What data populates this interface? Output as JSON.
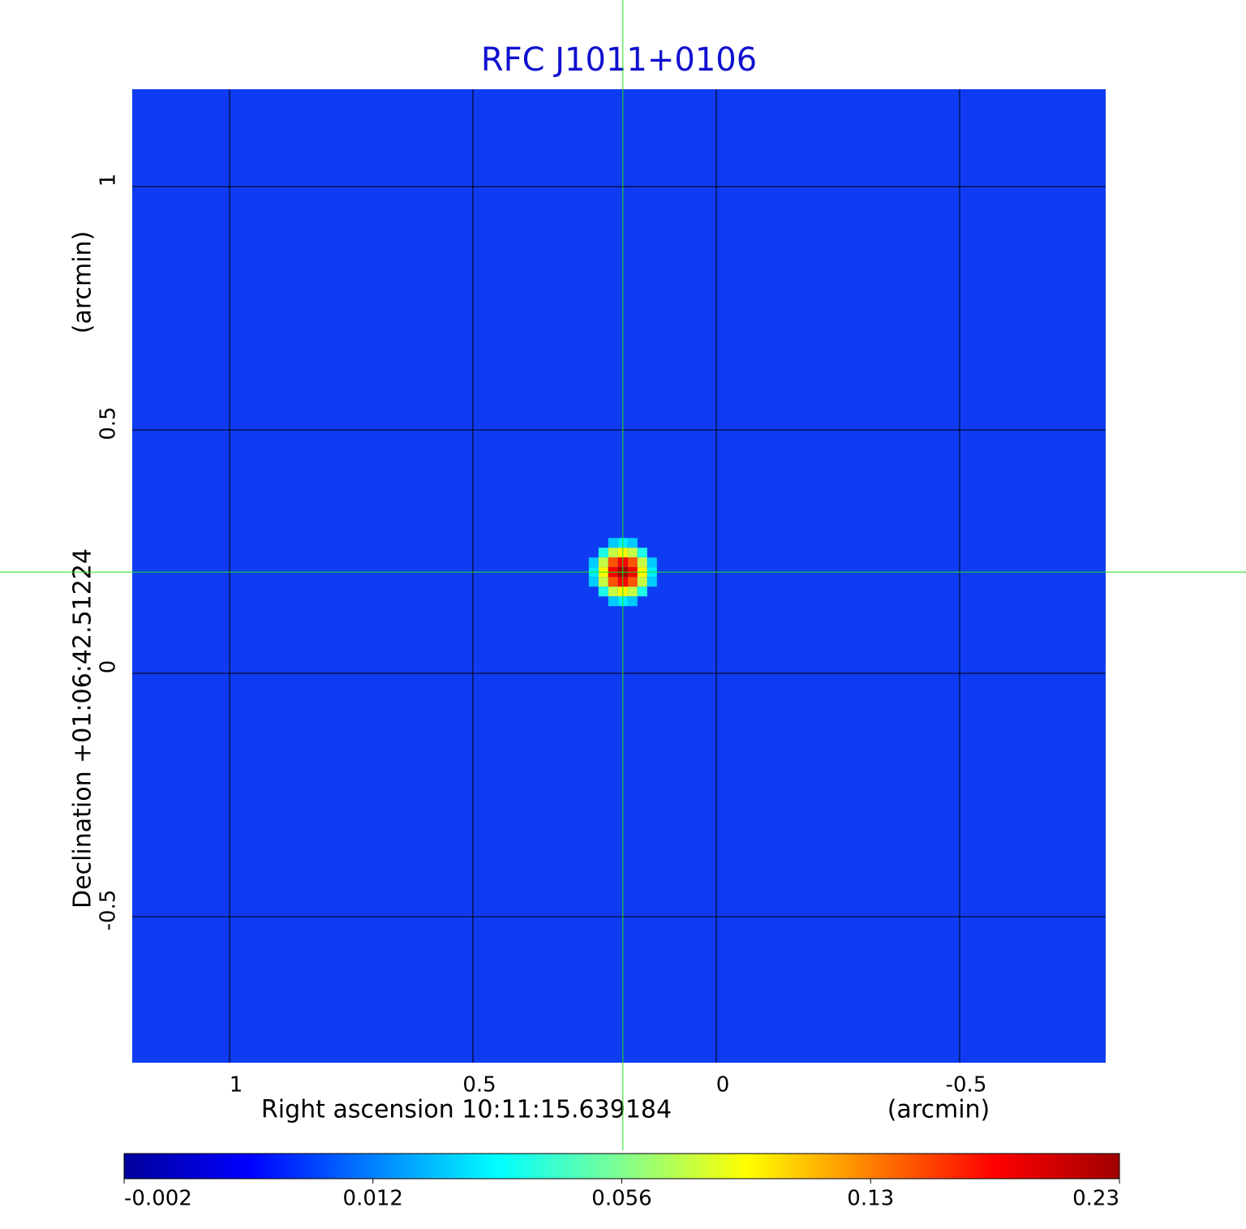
{
  "chart_data": {
    "type": "image",
    "title": "RFC J1011+0106",
    "x_label": "Right ascension  10:11:15.639184",
    "x_unit": "(arcmin)",
    "y_label": "Declination  +01:06:42.51224",
    "y_unit": "(arcmin)",
    "xlim": [
      1.2,
      -0.8
    ],
    "ylim": [
      -0.8,
      1.2
    ],
    "xticks": [
      1.0,
      0.5,
      0.0,
      -0.5
    ],
    "yticks": [
      1.0,
      0.5,
      0.0,
      -0.5
    ],
    "grid": true,
    "background": "#0f3cf2",
    "source": {
      "x": 0.192,
      "y": 0.208,
      "peak": 0.23
    },
    "colormap": [
      "#00009a",
      "#0000ff",
      "#0080ff",
      "#00ffff",
      "#80ff90",
      "#ffff00",
      "#ff8000",
      "#ff0000",
      "#a00000"
    ],
    "colorbar_ticks": [
      -0.002,
      0.012,
      0.056,
      0.13,
      0.23
    ]
  }
}
